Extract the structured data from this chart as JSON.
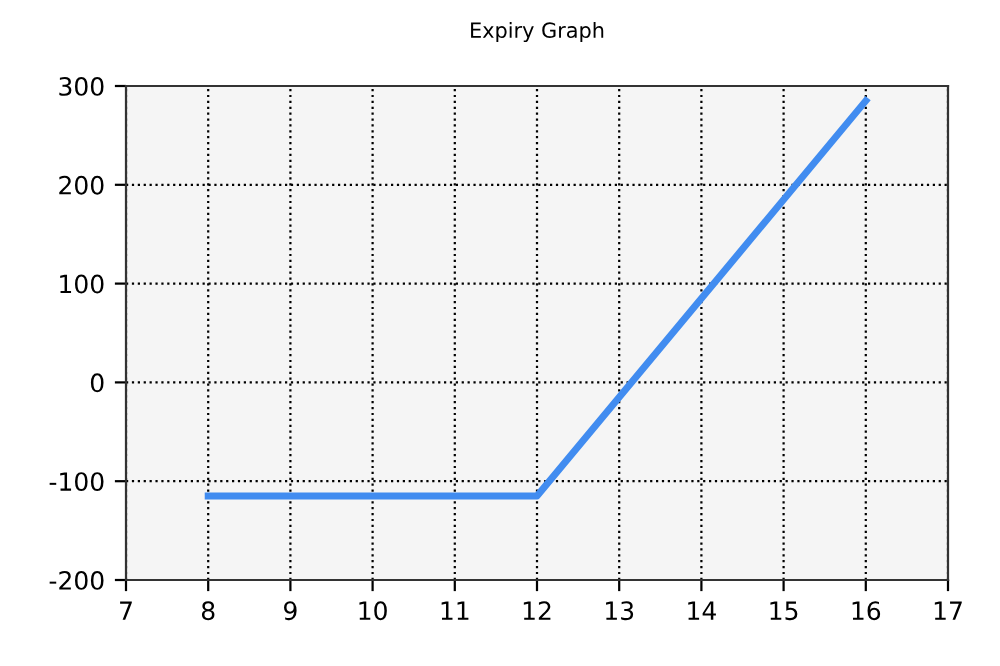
{
  "chart_data": {
    "type": "line",
    "title": "Expiry Graph",
    "x": [
      8,
      12,
      16
    ],
    "series": [
      {
        "color": "#418cf0",
        "values": [
          -115,
          -115,
          285
        ]
      }
    ],
    "xlim": [
      7,
      17
    ],
    "xticks": [
      7,
      8,
      9,
      10,
      11,
      12,
      13,
      14,
      15,
      16,
      17
    ],
    "ylim": [
      -200,
      300
    ],
    "yticks": [
      -200,
      -100,
      0,
      100,
      200,
      300
    ],
    "grid": true,
    "line_style": "solid",
    "marker": "none"
  }
}
